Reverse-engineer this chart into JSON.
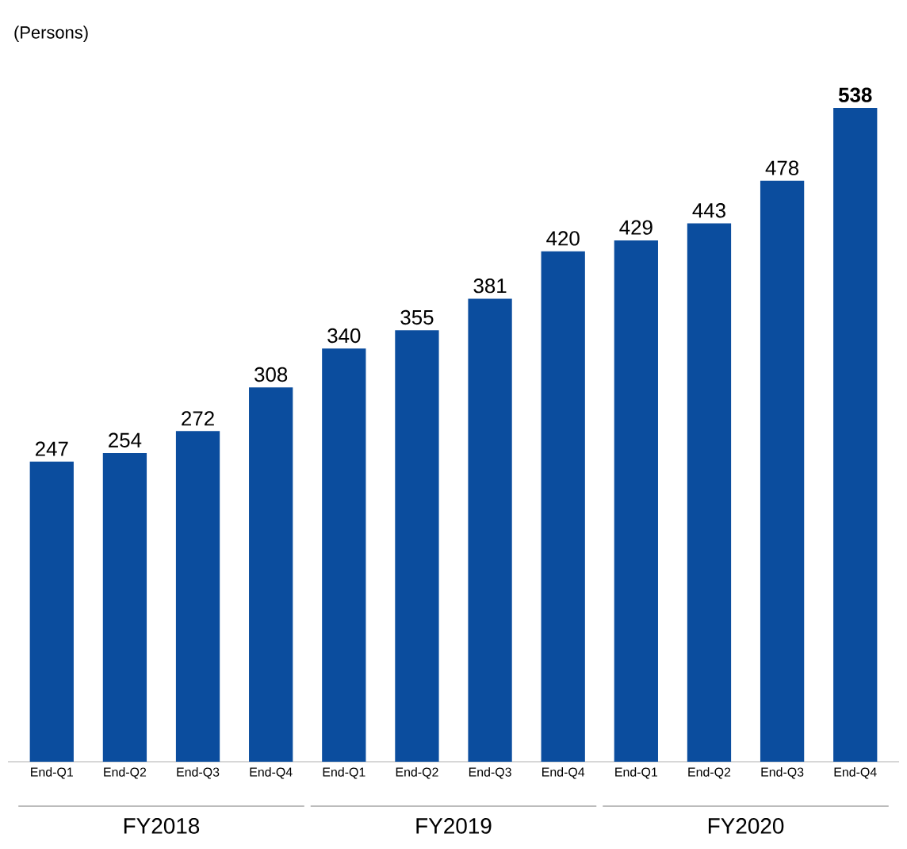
{
  "chart_data": {
    "type": "bar",
    "ylabel": "(Persons)",
    "categories": [
      "End-Q1",
      "End-Q2",
      "End-Q3",
      "End-Q4",
      "End-Q1",
      "End-Q2",
      "End-Q3",
      "End-Q4",
      "End-Q1",
      "End-Q2",
      "End-Q3",
      "End-Q4"
    ],
    "values": [
      247,
      254,
      272,
      308,
      340,
      355,
      381,
      420,
      429,
      443,
      478,
      538
    ],
    "value_labels": [
      "247",
      "254",
      "272",
      "308",
      "340",
      "355",
      "381",
      "420",
      "429",
      "443",
      "478",
      "**538**"
    ],
    "color": "#0b4d9e",
    "annotations": [
      "FY2018",
      "FY2019",
      "FY2020"
    ]
  }
}
